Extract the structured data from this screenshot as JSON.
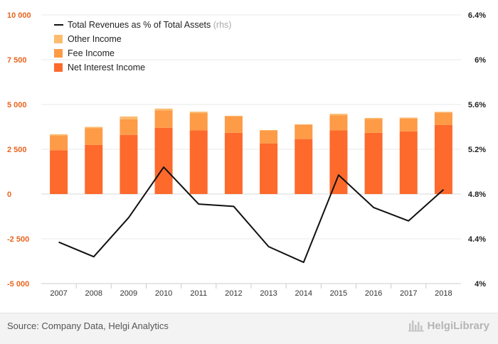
{
  "chart_data": {
    "type": "bar",
    "categories": [
      "2007",
      "2008",
      "2009",
      "2010",
      "2011",
      "2012",
      "2013",
      "2014",
      "2015",
      "2016",
      "2017",
      "2018"
    ],
    "series": [
      {
        "name": "Net Interest Income",
        "kind": "bar",
        "axis": "left",
        "color": "#fd6a2c",
        "values": [
          2450,
          2750,
          3300,
          3700,
          3550,
          3420,
          2830,
          3070,
          3550,
          3420,
          3500,
          3850
        ]
      },
      {
        "name": "Fee Income",
        "kind": "bar",
        "axis": "left",
        "color": "#fd9b47",
        "values": [
          820,
          920,
          880,
          970,
          970,
          920,
          720,
          800,
          850,
          780,
          720,
          700
        ]
      },
      {
        "name": "Other Income",
        "kind": "bar",
        "axis": "left",
        "color": "#fdbb6e",
        "values": [
          70,
          80,
          150,
          100,
          80,
          30,
          20,
          20,
          80,
          50,
          50,
          40
        ]
      },
      {
        "name": "Total Revenues as % of Total Assets",
        "note": "(rhs)",
        "kind": "line",
        "axis": "right",
        "color": "#111111",
        "values": [
          4.37,
          4.24,
          4.59,
          5.04,
          4.71,
          4.69,
          4.33,
          4.19,
          4.97,
          4.68,
          4.56,
          4.84
        ]
      }
    ],
    "left_axis": {
      "ylim": [
        -5000,
        10000
      ],
      "ticks": [
        -5000,
        -2500,
        0,
        2500,
        5000,
        7500,
        10000
      ],
      "tick_labels": [
        "-5 000",
        "-2 500",
        "0",
        "2 500",
        "5 000",
        "7 500",
        "10 000"
      ]
    },
    "right_axis": {
      "ylim": [
        4.0,
        6.4
      ],
      "ticks": [
        4.0,
        4.4,
        4.8,
        5.2,
        5.6,
        6.0,
        6.4
      ],
      "tick_labels": [
        "4%",
        "4.4%",
        "4.8%",
        "5.2%",
        "5.6%",
        "6%",
        "6.4%"
      ]
    },
    "grid": true,
    "legend_position": "top-left",
    "title": "",
    "xlabel": "",
    "ylabel": ""
  },
  "footer": {
    "source": "Source: Company Data, Helgi Analytics",
    "brand": "HelgiLibrary"
  }
}
